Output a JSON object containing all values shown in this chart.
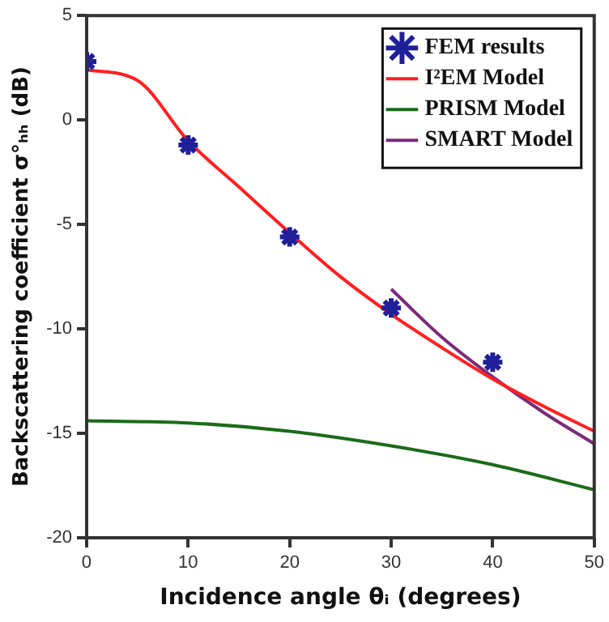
{
  "chart_data": {
    "type": "line",
    "xlabel": "Incidence angle θᵢ (degrees)",
    "ylabel": "Backscattering coefficient σ°ₕₕ (dB)",
    "xlim": [
      0,
      50
    ],
    "xticks": [
      0,
      10,
      20,
      30,
      40,
      50
    ],
    "ylim": [
      -20,
      5
    ],
    "yticks": [
      -20,
      -15,
      -10,
      -5,
      0,
      5
    ],
    "grid": false,
    "legend": "top right",
    "series": [
      {
        "name": "FEM results",
        "type": "scatter",
        "marker": "cross",
        "color": "#1f1f9a",
        "x": [
          0,
          10,
          20,
          30,
          40
        ],
        "values": [
          2.8,
          -1.2,
          -5.6,
          -9.0,
          -11.6
        ]
      },
      {
        "name": "I²EM Model",
        "type": "line",
        "color": "#ff1f1f",
        "x": [
          0,
          5,
          10,
          15,
          20,
          25,
          30,
          35,
          40,
          45,
          50
        ],
        "values": [
          2.4,
          1.9,
          -1.0,
          -3.2,
          -5.4,
          -7.5,
          -9.3,
          -10.9,
          -12.4,
          -13.7,
          -14.9
        ]
      },
      {
        "name": "PRISM Model",
        "type": "line",
        "color": "#1a6b1a",
        "x": [
          0,
          10,
          20,
          30,
          40,
          50
        ],
        "values": [
          -14.4,
          -14.5,
          -14.9,
          -15.6,
          -16.5,
          -17.7
        ]
      },
      {
        "name": "SMART Model",
        "type": "line",
        "color": "#7a2a7a",
        "x": [
          30,
          35,
          40,
          45,
          50
        ],
        "values": [
          -8.1,
          -10.4,
          -12.3,
          -14.0,
          -15.5
        ]
      }
    ]
  }
}
